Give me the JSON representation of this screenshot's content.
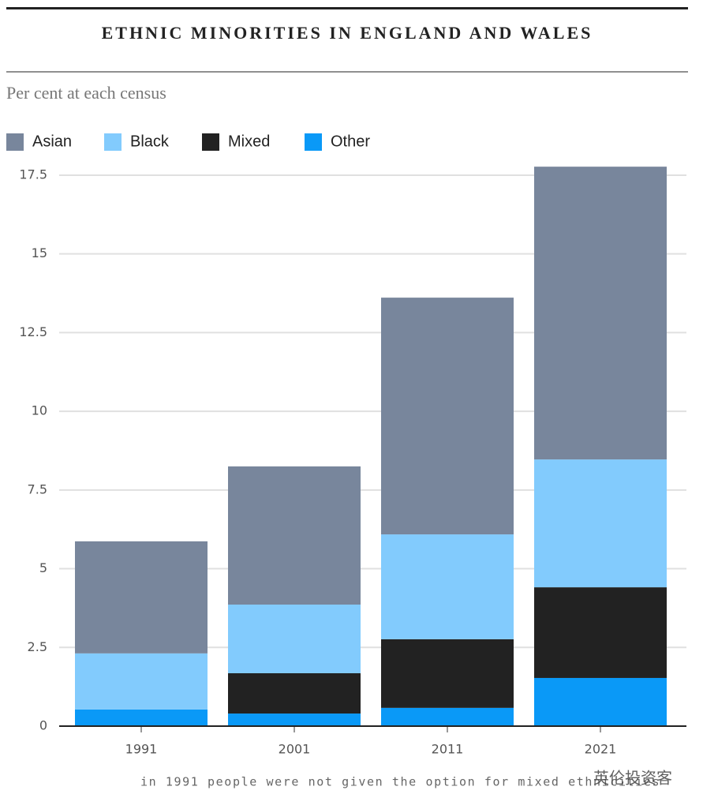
{
  "chart_data": {
    "type": "stacked-bar",
    "title": "ETHNIC MINORITIES IN ENGLAND AND WALES",
    "subtitle": "Per cent at each census",
    "categories": [
      "1991",
      "2001",
      "2011",
      "2021"
    ],
    "series": [
      {
        "name": "Asian",
        "color": "#78869c",
        "values": [
          3.56,
          4.39,
          7.52,
          9.3
        ]
      },
      {
        "name": "Black",
        "color": "#82cbfd",
        "values": [
          1.78,
          2.18,
          3.33,
          4.06
        ]
      },
      {
        "name": "Mixed",
        "color": "#222222",
        "values": [
          0,
          1.28,
          2.18,
          2.88
        ]
      },
      {
        "name": "Other",
        "color": "#0a99f7",
        "values": [
          0.53,
          0.4,
          0.58,
          1.53
        ]
      }
    ],
    "ylim": [
      0,
      18
    ],
    "yticks": [
      0,
      2.5,
      5,
      7.5,
      10,
      12.5,
      15,
      17.5
    ],
    "grid": true,
    "note": "in 1991 people were not given the option for mixed ethnicities",
    "watermark": "英伦投资客"
  }
}
